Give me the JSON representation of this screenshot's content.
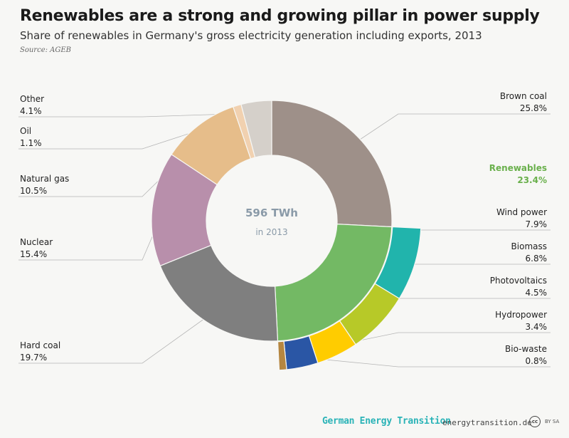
{
  "header": {
    "title": "Renewables are a strong and growing pillar in power supply",
    "subtitle": "Share of renewables in Germany's gross electricity generation including exports, 2013",
    "source": "Source: AGEB"
  },
  "center": {
    "main": "596 TWh",
    "sub": "in 2013"
  },
  "footer": {
    "brand": "German Energy Transition",
    "url": "energytransition.de",
    "license": "BY SA",
    "cc": "cc"
  },
  "colors": {
    "brown_coal": "#9e9089",
    "renewables": "#73b964",
    "hard_coal": "#7f7f7f",
    "nuclear": "#b88fab",
    "natural_gas": "#e6bd8a",
    "oil": "#f1d1b0",
    "other": "#d5d0ca",
    "wind": "#21b4ac",
    "biomass": "#b7c928",
    "photovoltaics": "#ffcc00",
    "hydropower": "#2a56a5",
    "biowaste": "#b58640",
    "leader": "#b5b5b5"
  },
  "chart_data": {
    "type": "pie",
    "variant": "donut-with-outer-ring",
    "title": "Renewables are a strong and growing pillar in power supply",
    "unit": "%",
    "total": "596 TWh",
    "slices": [
      {
        "key": "brown_coal",
        "label": "Brown coal",
        "value": 25.8,
        "value_text": "25.8%"
      },
      {
        "key": "renewables",
        "label": "Renewables",
        "value": 23.4,
        "value_text": "23.4%"
      },
      {
        "key": "hard_coal",
        "label": "Hard coal",
        "value": 19.7,
        "value_text": "19.7%"
      },
      {
        "key": "nuclear",
        "label": "Nuclear",
        "value": 15.4,
        "value_text": "15.4%"
      },
      {
        "key": "natural_gas",
        "label": "Natural gas",
        "value": 10.5,
        "value_text": "10.5%"
      },
      {
        "key": "oil",
        "label": "Oil",
        "value": 1.1,
        "value_text": "1.1%"
      },
      {
        "key": "other",
        "label": "Other",
        "value": 4.1,
        "value_text": "4.1%"
      }
    ],
    "renewables_breakdown": [
      {
        "key": "wind",
        "label": "Wind power",
        "value": 7.9,
        "value_text": "7.9%"
      },
      {
        "key": "biomass",
        "label": "Biomass",
        "value": 6.8,
        "value_text": "6.8%"
      },
      {
        "key": "photovoltaics",
        "label": "Photovoltaics",
        "value": 4.5,
        "value_text": "4.5%"
      },
      {
        "key": "hydropower",
        "label": "Hydropower",
        "value": 3.4,
        "value_text": "3.4%"
      },
      {
        "key": "biowaste",
        "label": "Bio-waste",
        "value": 0.8,
        "value_text": "0.8%"
      }
    ]
  }
}
